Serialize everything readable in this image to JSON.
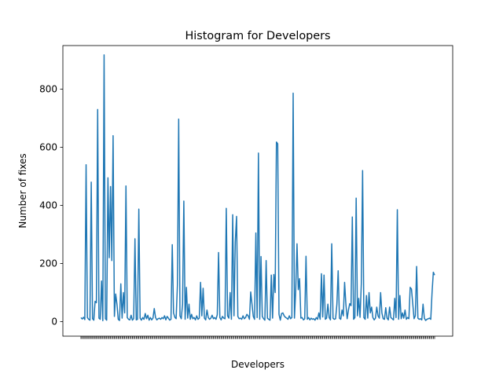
{
  "chart_data": {
    "type": "line",
    "title": "Histogram for Developers",
    "xlabel": "Developers",
    "ylabel": "Number of fixes",
    "ylim": [
      -50,
      950
    ],
    "yticks": [
      0,
      200,
      400,
      600,
      800
    ],
    "grid": false,
    "legend": "none",
    "line_color": "#1f77b4",
    "values": [
      14,
      9,
      15,
      7,
      540,
      14,
      8,
      5,
      480,
      10,
      5,
      70,
      65,
      730,
      12,
      8,
      140,
      3,
      918,
      10,
      5,
      495,
      220,
      465,
      210,
      640,
      18,
      95,
      60,
      8,
      4,
      130,
      12,
      100,
      30,
      467,
      14,
      8,
      6,
      22,
      5,
      10,
      285,
      6,
      8,
      387,
      12,
      5,
      14,
      8,
      28,
      10,
      22,
      5,
      14,
      6,
      12,
      45,
      14,
      6,
      10,
      12,
      8,
      14,
      10,
      20,
      6,
      18,
      12,
      5,
      8,
      265,
      30,
      15,
      10,
      125,
      697,
      20,
      10,
      60,
      415,
      8,
      118,
      12,
      60,
      8,
      25,
      10,
      14,
      6,
      20,
      8,
      12,
      135,
      20,
      115,
      12,
      6,
      40,
      14,
      8,
      12,
      22,
      10,
      14,
      8,
      24,
      238,
      14,
      6,
      18,
      12,
      10,
      390,
      20,
      12,
      100,
      8,
      368,
      20,
      275,
      362,
      18,
      10,
      12,
      8,
      20,
      10,
      14,
      25,
      20,
      8,
      102,
      60,
      18,
      8,
      305,
      14,
      580,
      8,
      224,
      18,
      10,
      5,
      210,
      12,
      8,
      5,
      160,
      12,
      162,
      100,
      618,
      612,
      25,
      5,
      28,
      30,
      20,
      15,
      12,
      8,
      20,
      10,
      14,
      786,
      12,
      108,
      268,
      110,
      148,
      12,
      14,
      6,
      10,
      225,
      8,
      14,
      6,
      12,
      8,
      10,
      5,
      14,
      8,
      30,
      8,
      165,
      16,
      160,
      8,
      12,
      60,
      14,
      6,
      268,
      12,
      8,
      10,
      60,
      175,
      12,
      8,
      40,
      20,
      135,
      60,
      10,
      40,
      62,
      55,
      360,
      8,
      14,
      425,
      20,
      80,
      15,
      130,
      520,
      14,
      8,
      90,
      12,
      100,
      30,
      50,
      14,
      6,
      12,
      50,
      20,
      12,
      100,
      30,
      10,
      8,
      48,
      12,
      6,
      50,
      14,
      10,
      6,
      80,
      14,
      385,
      8,
      90,
      10,
      30,
      12,
      40,
      8,
      14,
      10,
      118,
      112,
      62,
      10,
      20,
      190,
      12,
      8,
      10,
      6,
      60,
      12,
      4,
      8,
      10,
      12,
      8,
      100,
      170,
      160
    ]
  }
}
